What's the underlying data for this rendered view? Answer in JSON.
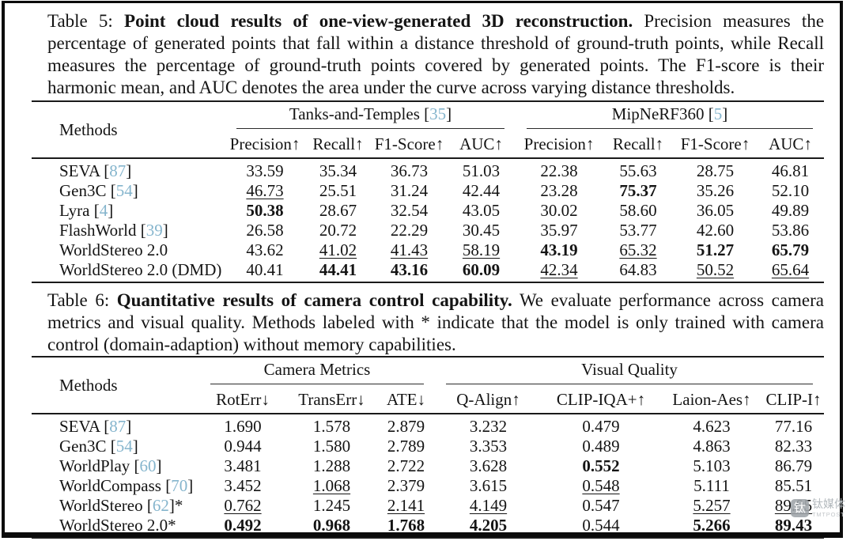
{
  "page": {
    "watermark": {
      "logo_char": "钛",
      "cn": "钛媒体",
      "en": "TMTPOST"
    }
  },
  "colors": {
    "citation": "#85b5cd",
    "rule": "#1a1a1a",
    "text": "#141414",
    "watermark": "#b3b9bd"
  },
  "table5": {
    "caption": {
      "label": "Table 5:",
      "bold": "Point cloud results of one-view-generated 3D reconstruction.",
      "rest": "Precision measures the percentage of generated points that fall within a distance threshold of ground-truth points, while Recall measures the percentage of ground-truth points covered by generated points. The F1-score is their harmonic mean, and AUC denotes the area under the curve across varying distance thresholds."
    },
    "methods_header": "Methods",
    "groups": [
      {
        "label": "Tanks-and-Temples",
        "cite": "35",
        "span": 4
      },
      {
        "label": "MipNeRF360",
        "cite": "5",
        "span": 4
      }
    ],
    "subheaders": [
      "Precision↑",
      "Recall↑",
      "F1-Score↑",
      "AUC↑",
      "Precision↑",
      "Recall↑",
      "F1-Score↑",
      "AUC↑"
    ],
    "rows": [
      {
        "method": "SEVA",
        "cite": "87",
        "suffix": "",
        "values": [
          "33.59",
          "35.34",
          "36.73",
          "51.03",
          "22.38",
          "55.63",
          "28.75",
          "46.81"
        ],
        "styles": [
          "",
          "",
          "",
          "",
          "",
          "",
          "",
          ""
        ]
      },
      {
        "method": "Gen3C",
        "cite": "54",
        "suffix": "",
        "values": [
          "46.73",
          "25.51",
          "31.24",
          "42.44",
          "23.28",
          "75.37",
          "35.26",
          "52.10"
        ],
        "styles": [
          "u",
          "",
          "",
          "",
          "",
          "b",
          "",
          ""
        ]
      },
      {
        "method": "Lyra",
        "cite": "4",
        "suffix": "",
        "values": [
          "50.38",
          "28.67",
          "32.54",
          "43.05",
          "30.02",
          "58.60",
          "36.05",
          "49.89"
        ],
        "styles": [
          "b",
          "",
          "",
          "",
          "",
          "",
          "",
          ""
        ]
      },
      {
        "method": "FlashWorld",
        "cite": "39",
        "suffix": "",
        "values": [
          "26.58",
          "20.72",
          "22.29",
          "30.45",
          "35.97",
          "53.77",
          "42.60",
          "53.86"
        ],
        "styles": [
          "",
          "",
          "",
          "",
          "",
          "",
          "",
          ""
        ]
      },
      {
        "method": "WorldStereo 2.0",
        "cite": null,
        "suffix": "",
        "values": [
          "43.62",
          "41.02",
          "41.43",
          "58.19",
          "43.19",
          "65.32",
          "51.27",
          "65.79"
        ],
        "styles": [
          "",
          "u",
          "u",
          "u",
          "b",
          "u",
          "b",
          "b"
        ]
      },
      {
        "method": "WorldStereo 2.0 (DMD)",
        "cite": null,
        "suffix": "",
        "values": [
          "40.41",
          "44.41",
          "43.16",
          "60.09",
          "42.34",
          "64.83",
          "50.52",
          "65.64"
        ],
        "styles": [
          "",
          "b",
          "b",
          "b",
          "u",
          "",
          "u",
          "u"
        ]
      }
    ]
  },
  "table6": {
    "caption": {
      "label": "Table 6:",
      "bold": "Quantitative results of camera control capability.",
      "rest": "We evaluate performance across camera metrics and visual quality. Methods labeled with * indicate that the model is only trained with camera control (domain-adaption) without memory capabilities."
    },
    "methods_header": "Methods",
    "groups": [
      {
        "label": "Camera Metrics",
        "cite": null,
        "span": 3
      },
      {
        "label": "Visual Quality",
        "cite": null,
        "span": 4
      }
    ],
    "subheaders": [
      "RotErr↓",
      "TransErr↓",
      "ATE↓",
      "Q-Align↑",
      "CLIP-IQA+↑",
      "Laion-Aes↑",
      "CLIP-I↑"
    ],
    "rows": [
      {
        "method": "SEVA",
        "cite": "87",
        "suffix": "",
        "values": [
          "1.690",
          "1.578",
          "2.879",
          "3.232",
          "0.479",
          "4.623",
          "77.16"
        ],
        "styles": [
          "",
          "",
          "",
          "",
          "",
          "",
          ""
        ]
      },
      {
        "method": "Gen3C",
        "cite": "54",
        "suffix": "",
        "values": [
          "0.944",
          "1.580",
          "2.789",
          "3.353",
          "0.489",
          "4.863",
          "82.33"
        ],
        "styles": [
          "",
          "",
          "",
          "",
          "",
          "",
          ""
        ]
      },
      {
        "method": "WorldPlay",
        "cite": "60",
        "suffix": "",
        "values": [
          "3.481",
          "1.288",
          "2.722",
          "3.628",
          "0.552",
          "5.103",
          "86.79"
        ],
        "styles": [
          "",
          "",
          "",
          "",
          "b",
          "",
          ""
        ]
      },
      {
        "method": "WorldCompass",
        "cite": "70",
        "suffix": "",
        "values": [
          "3.452",
          "1.068",
          "2.379",
          "3.615",
          "0.548",
          "5.111",
          "85.51"
        ],
        "styles": [
          "",
          "u",
          "",
          "",
          "u",
          "",
          ""
        ]
      },
      {
        "method": "WorldStereo",
        "cite": "62",
        "suffix": "*",
        "values": [
          "0.762",
          "1.245",
          "2.141",
          "4.149",
          "0.547",
          "5.257",
          "89.05"
        ],
        "styles": [
          "u",
          "",
          "u",
          "u",
          "",
          "u",
          "u"
        ]
      },
      {
        "method": "WorldStereo 2.0*",
        "cite": null,
        "suffix": "",
        "values": [
          "0.492",
          "0.968",
          "1.768",
          "4.205",
          "0.544",
          "5.266",
          "89.43"
        ],
        "styles": [
          "b",
          "b",
          "b",
          "b",
          "",
          "b",
          "b"
        ]
      }
    ]
  }
}
